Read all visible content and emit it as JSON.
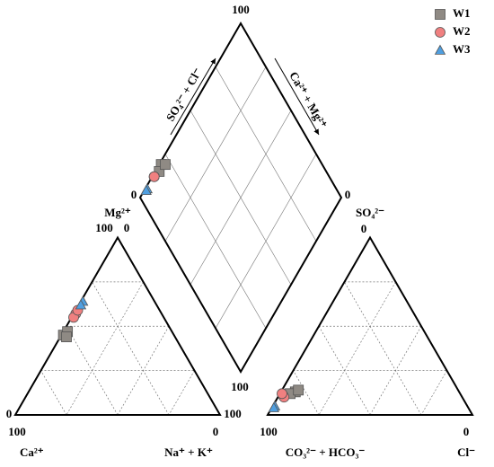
{
  "chart_data": {
    "type": "piper",
    "corner_ticks": [
      0,
      100
    ],
    "grid_ticks": [
      25,
      50,
      75
    ],
    "labels": {
      "mg": "Mg²⁺",
      "ca": "Ca²⁺",
      "nak": "Na⁺ + K⁺",
      "so4": "SO₄²⁻",
      "hco3": "CO₃²⁻ + HCO₃⁻",
      "cl": "Cl⁻",
      "so4cl": "SO₄²⁻ + Cl⁻",
      "camg": "Ca²⁺ + Mg²⁺"
    },
    "legend": "top-right",
    "series": [
      {
        "name": "W1",
        "color": "#8f8a84",
        "marker": "square",
        "Ca": [
          54,
          51,
          53
        ],
        "Mg": [
          45,
          47,
          44
        ],
        "NaK": [
          1,
          2,
          3
        ],
        "HCO3": [
          80,
          83,
          78
        ],
        "SO4": [
          13,
          12,
          14
        ],
        "Cl": [
          7,
          5,
          8
        ]
      },
      {
        "name": "W2",
        "color": "#f08080",
        "marker": "circle",
        "Ca": [
          42,
          44,
          40
        ],
        "Mg": [
          57,
          55,
          59
        ],
        "NaK": [
          1,
          1,
          1
        ],
        "HCO3": [
          87,
          87,
          87
        ],
        "SO4": [
          11,
          10,
          12
        ],
        "Cl": [
          2,
          3,
          1
        ]
      },
      {
        "name": "W3",
        "color": "#4f9fe0",
        "marker": "triangle",
        "Ca": [
          35,
          37
        ],
        "Mg": [
          64,
          62
        ],
        "NaK": [
          1,
          1
        ],
        "HCO3": [
          94,
          95
        ],
        "SO4": [
          5,
          4
        ],
        "Cl": [
          1,
          1
        ]
      }
    ]
  }
}
